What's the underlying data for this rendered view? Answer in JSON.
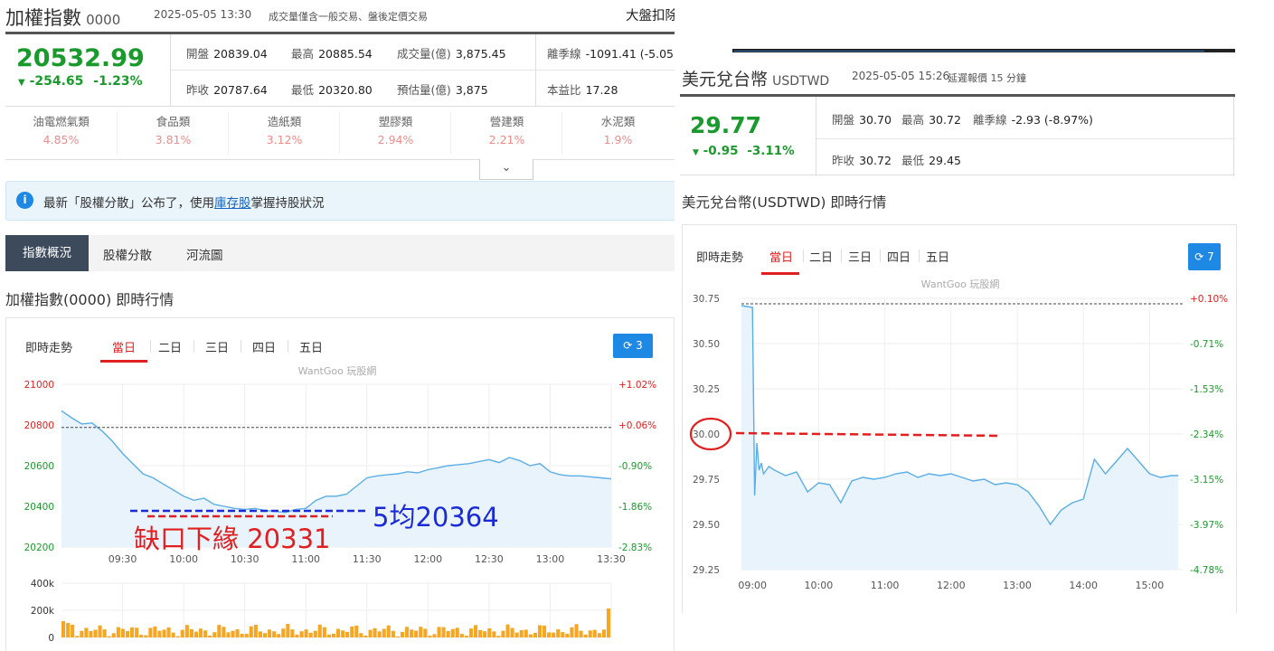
{
  "left": {
    "header": {
      "name": "加權指數",
      "code": "0000",
      "datetime": "2025-05-05 13:30",
      "note": "成交量僅含一般交易、盤後定價交易",
      "right_link": "大盤扣除"
    },
    "quote": {
      "price": "20532.99",
      "change": "-254.65",
      "change_pct": "-1.23%"
    },
    "stats": [
      {
        "label": "開盤",
        "value": "20839.04"
      },
      {
        "label": "最高",
        "value": "20885.54"
      },
      {
        "label": "成交量(億)",
        "value": "3,875.45"
      },
      {
        "label": "離季線",
        "value": "-1091.41 (-5.05"
      },
      {
        "label": "昨收",
        "value": "20787.64"
      },
      {
        "label": "最低",
        "value": "20320.80"
      },
      {
        "label": "預估量(億)",
        "value": "3,875"
      },
      {
        "label": "本益比",
        "value": "17.28"
      }
    ],
    "sectors": [
      {
        "name": "油電燃氣類",
        "pct": "4.85%"
      },
      {
        "name": "食品類",
        "pct": "3.81%"
      },
      {
        "name": "造紙類",
        "pct": "3.12%"
      },
      {
        "name": "塑膠類",
        "pct": "2.94%"
      },
      {
        "name": "營建類",
        "pct": "2.21%"
      },
      {
        "name": "水泥類",
        "pct": "1.9%"
      }
    ],
    "notice": {
      "prefix": "最新「股權分散」公布了，使用",
      "link": "庫存股",
      "suffix": "掌握持股狀況"
    },
    "tabs": [
      "指數概況",
      "股權分散",
      "河流圖"
    ],
    "section_title": "加權指數(0000) 即時行情",
    "chart_tabs": [
      "即時走勢",
      "當日",
      "二日",
      "三日",
      "四日",
      "五日"
    ],
    "refresh_count": "3",
    "watermark": "WantGoo 玩股網",
    "annotations": {
      "gap": "缺口下緣 20331",
      "ma5": "5均20364"
    }
  },
  "right": {
    "header": {
      "name": "美元兌台幣",
      "code": "USDTWD",
      "datetime": "2025-05-05 15:26",
      "delay": "延遲報價 15 分鐘"
    },
    "quote": {
      "price": "29.77",
      "change": "-0.95",
      "change_pct": "-3.11%"
    },
    "stats": [
      {
        "label": "開盤",
        "value": "30.70"
      },
      {
        "label": "最高",
        "value": "30.72"
      },
      {
        "label": "離季線",
        "value": "-2.93 (-8.97%)"
      },
      {
        "label": "昨收",
        "value": "30.72"
      },
      {
        "label": "最低",
        "value": "29.45"
      }
    ],
    "section_title": "美元兌台幣(USDTWD) 即時行情",
    "chart_tabs": [
      "即時走勢",
      "當日",
      "二日",
      "三日",
      "四日",
      "五日"
    ],
    "refresh_count": "7",
    "watermark": "WantGoo 玩股網"
  },
  "colors": {
    "up": "#e02020",
    "down": "#1a9a2c",
    "line": "#5aaee6",
    "area": "#e8f3fc",
    "volume": "#f5a623",
    "accent": "#1e88e5",
    "dark_tab": "#3c4a5c",
    "annotation_red": "#e02020",
    "annotation_blue": "#1a2bd6"
  },
  "chart_data": [
    {
      "type": "line",
      "name": "加權指數 當日",
      "x_ticks": [
        "09:30",
        "10:00",
        "10:30",
        "11:00",
        "11:30",
        "12:00",
        "12:30",
        "13:00",
        "13:30"
      ],
      "y_ticks": [
        21000,
        20800,
        20600,
        20400,
        20200
      ],
      "y2_ticks": [
        "+1.02%",
        "+0.06%",
        "-0.90%",
        "-1.86%",
        "-2.83%"
      ],
      "ylim": [
        20200,
        21000
      ],
      "reference": 20787.64,
      "x": [
        "09:00",
        "09:05",
        "09:10",
        "09:15",
        "09:20",
        "09:25",
        "09:30",
        "09:35",
        "09:40",
        "09:45",
        "09:50",
        "09:55",
        "10:00",
        "10:05",
        "10:10",
        "10:15",
        "10:20",
        "10:25",
        "10:30",
        "10:35",
        "10:40",
        "10:45",
        "10:50",
        "10:55",
        "11:00",
        "11:05",
        "11:10",
        "11:15",
        "11:20",
        "11:25",
        "11:30",
        "11:35",
        "11:40",
        "11:45",
        "11:50",
        "11:55",
        "12:00",
        "12:05",
        "12:10",
        "12:15",
        "12:20",
        "12:25",
        "12:30",
        "12:35",
        "12:40",
        "12:45",
        "12:50",
        "12:55",
        "13:00",
        "13:05",
        "13:10",
        "13:15",
        "13:20",
        "13:25",
        "13:30"
      ],
      "y": [
        20870,
        20835,
        20805,
        20810,
        20770,
        20720,
        20660,
        20610,
        20560,
        20540,
        20510,
        20480,
        20450,
        20430,
        20440,
        20410,
        20400,
        20390,
        20385,
        20390,
        20380,
        20375,
        20370,
        20385,
        20390,
        20430,
        20450,
        20450,
        20460,
        20500,
        20540,
        20550,
        20555,
        20560,
        20570,
        20565,
        20580,
        20590,
        20600,
        20605,
        20610,
        20620,
        20630,
        20615,
        20640,
        20625,
        20600,
        20610,
        20570,
        20555,
        20550,
        20550,
        20545,
        20540,
        20535
      ],
      "volume_ticks": [
        "400k",
        "200k",
        "0"
      ]
    },
    {
      "type": "line",
      "name": "美元兌台幣 當日",
      "x_ticks": [
        "09:00",
        "10:00",
        "11:00",
        "12:00",
        "13:00",
        "14:00",
        "15:00"
      ],
      "y_ticks": [
        30.75,
        30.5,
        30.25,
        30.0,
        29.75,
        29.5,
        29.25
      ],
      "y_tick_labels": [
        "30.75",
        "30.50",
        "30.25",
        "30.00",
        "29.75",
        "29.50",
        "29.25"
      ],
      "y2_ticks": [
        "+0.10%",
        "-0.71%",
        "-1.53%",
        "-2.34%",
        "-3.15%",
        "-3.97%",
        "-4.78%"
      ],
      "ylim": [
        29.25,
        30.75
      ],
      "reference": 30.72,
      "x": [
        "08:50",
        "09:00",
        "09:02",
        "09:04",
        "09:06",
        "09:08",
        "09:10",
        "09:15",
        "09:20",
        "09:30",
        "09:40",
        "09:50",
        "10:00",
        "10:10",
        "10:20",
        "10:30",
        "10:40",
        "10:50",
        "11:00",
        "11:10",
        "11:20",
        "11:30",
        "11:40",
        "11:50",
        "12:00",
        "12:10",
        "12:20",
        "12:30",
        "12:40",
        "12:50",
        "13:00",
        "13:10",
        "13:20",
        "13:30",
        "13:40",
        "13:50",
        "14:00",
        "14:10",
        "14:20",
        "14:30",
        "14:40",
        "14:50",
        "15:00",
        "15:10",
        "15:20",
        "15:26"
      ],
      "y": [
        30.71,
        30.7,
        29.66,
        29.95,
        29.8,
        29.84,
        29.78,
        29.82,
        29.8,
        29.77,
        29.79,
        29.68,
        29.73,
        29.72,
        29.62,
        29.74,
        29.76,
        29.75,
        29.76,
        29.78,
        29.79,
        29.76,
        29.78,
        29.77,
        29.78,
        29.76,
        29.74,
        29.75,
        29.72,
        29.73,
        29.72,
        29.68,
        29.6,
        29.5,
        29.58,
        29.62,
        29.64,
        29.86,
        29.78,
        29.85,
        29.92,
        29.85,
        29.78,
        29.76,
        29.77,
        29.77
      ]
    }
  ]
}
